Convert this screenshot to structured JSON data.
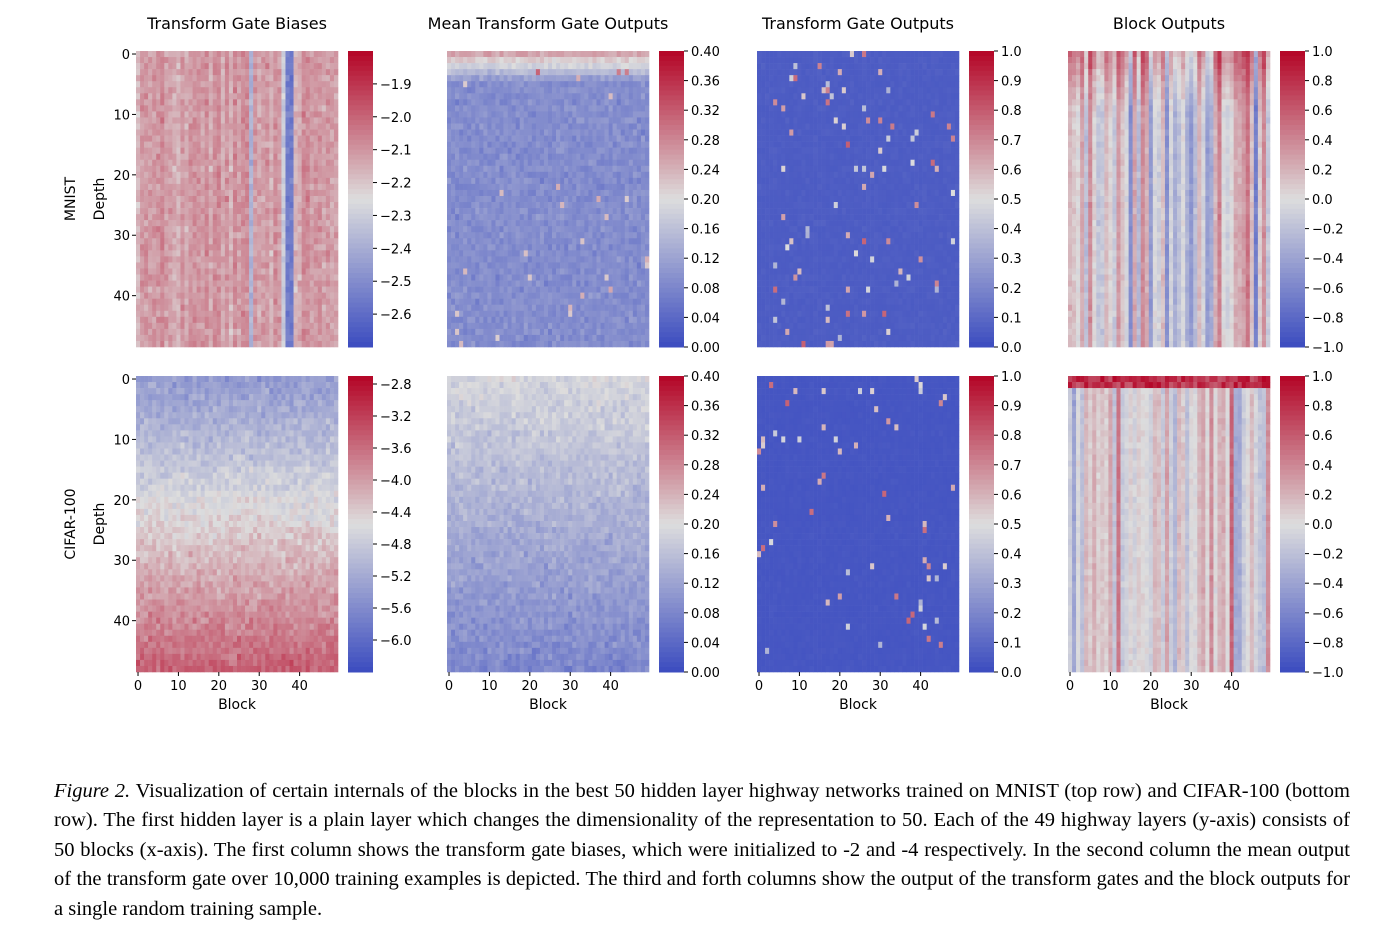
{
  "chart_data": {
    "type": "heatmap",
    "panel_titles": [
      "Transform Gate Biases",
      "Mean Transform Gate Outputs",
      "Transform Gate Outputs",
      "Block Outputs"
    ],
    "row_labels": [
      "MNIST",
      "CIFAR-100"
    ],
    "ylabel": "Depth",
    "xlabel": "Block",
    "x_ticks": [
      "0",
      "10",
      "20",
      "30",
      "40"
    ],
    "y_ticks": [
      "0",
      "10",
      "20",
      "30",
      "40"
    ],
    "grid_cols": 50,
    "grid_rows": 49,
    "colormap": "coolwarm",
    "colors": {
      "low": "#3b4cc0",
      "mid": "#dddddd",
      "high": "#b40426"
    },
    "panels": [
      {
        "dataset": "MNIST",
        "title": "Transform Gate Biases",
        "vmin": -2.7,
        "vmax": -1.8,
        "colorbar_ticks": [
          "−1.9",
          "−2.0",
          "−2.1",
          "−2.2",
          "−2.3",
          "−2.4",
          "−2.5",
          "−2.6"
        ],
        "pattern": "column-stripes around -2.1 with a few strongly negative columns (~-2.6) near blocks 28 and 38"
      },
      {
        "dataset": "MNIST",
        "title": "Mean Transform Gate Outputs",
        "vmin": 0.0,
        "vmax": 0.4,
        "colorbar_ticks": [
          "0.40",
          "0.36",
          "0.32",
          "0.28",
          "0.24",
          "0.20",
          "0.16",
          "0.12",
          "0.08",
          "0.04",
          "0.00"
        ],
        "pattern": "mostly 0.06-0.12, higher (~0.2-0.3) in the first ~5 layers"
      },
      {
        "dataset": "MNIST",
        "title": "Transform Gate Outputs",
        "vmin": 0.0,
        "vmax": 1.0,
        "colorbar_ticks": [
          "1.0",
          "0.9",
          "0.8",
          "0.7",
          "0.6",
          "0.5",
          "0.4",
          "0.3",
          "0.2",
          "0.1",
          "0.0"
        ],
        "pattern": "nearly all ~0.05, sparse activations up to 0.8"
      },
      {
        "dataset": "MNIST",
        "title": "Block Outputs",
        "vmin": -1.0,
        "vmax": 1.0,
        "colorbar_ticks": [
          "1.0",
          "0.8",
          "0.6",
          "0.4",
          "0.2",
          "0.0",
          "−0.2",
          "−0.4",
          "−0.6",
          "−0.8",
          "−1.0"
        ],
        "pattern": "vertical stripes: each block keeps a near-constant value across depth"
      },
      {
        "dataset": "CIFAR-100",
        "title": "Transform Gate Biases",
        "vmin": -6.4,
        "vmax": -2.7,
        "colorbar_ticks": [
          "−2.8",
          "−3.2",
          "−3.6",
          "−4.0",
          "−4.4",
          "−4.8",
          "−5.2",
          "−5.6",
          "−6.0"
        ],
        "pattern": "around -5.4 in shallow layers, rising to about -3.5 in deep layers"
      },
      {
        "dataset": "CIFAR-100",
        "title": "Mean Transform Gate Outputs",
        "vmin": 0.0,
        "vmax": 0.4,
        "colorbar_ticks": [
          "0.40",
          "0.36",
          "0.32",
          "0.28",
          "0.24",
          "0.20",
          "0.16",
          "0.12",
          "0.08",
          "0.04",
          "0.00"
        ],
        "pattern": "~0.16-0.2 in shallow layers, decreasing to ~0.08 in deep layers"
      },
      {
        "dataset": "CIFAR-100",
        "title": "Transform Gate Outputs",
        "vmin": 0.0,
        "vmax": 1.0,
        "colorbar_ticks": [
          "1.0",
          "0.9",
          "0.8",
          "0.7",
          "0.6",
          "0.5",
          "0.4",
          "0.3",
          "0.2",
          "0.1",
          "0.0"
        ],
        "pattern": "nearly all ~0.03, sparse activations up to 0.8"
      },
      {
        "dataset": "CIFAR-100",
        "title": "Block Outputs",
        "vmin": -1.0,
        "vmax": 1.0,
        "colorbar_ticks": [
          "1.0",
          "0.8",
          "0.6",
          "0.4",
          "0.2",
          "0.0",
          "−0.2",
          "−0.4",
          "−0.6",
          "−0.8",
          "−1.0"
        ],
        "pattern": "vertical stripes with strongly positive top rows (~1.0) in the first layers"
      }
    ]
  },
  "caption": {
    "label": "Figure 2.",
    "text": " Visualization of certain internals of the blocks in the best 50 hidden layer highway networks trained on MNIST (top row) and CIFAR-100 (bottom row). The first hidden layer is a plain layer which changes the dimensionality of the representation to 50. Each of the 49 highway layers (y-axis) consists of 50 blocks (x-axis). The first column shows the transform gate biases, which were initialized to -2 and -4 respectively. In the second column the mean output of the transform gate over 10,000 training examples is depicted. The third and forth columns show the output of the transform gates and the block outputs for a single random training sample."
  }
}
